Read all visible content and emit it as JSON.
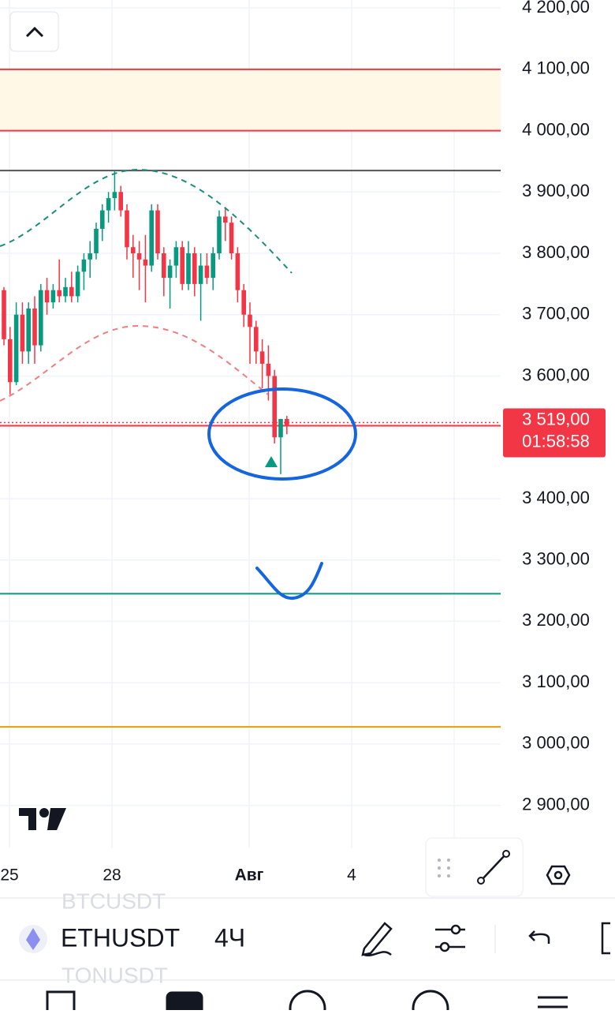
{
  "chart_data": {
    "type": "candlestick",
    "ylim": [
      2830,
      4213
    ],
    "yticks": [
      {
        "value": 4200,
        "label": "4 200,00"
      },
      {
        "value": 4100,
        "label": "4 100,00"
      },
      {
        "value": 4000,
        "label": "4 000,00"
      },
      {
        "value": 3900,
        "label": "3 900,00"
      },
      {
        "value": 3800,
        "label": "3 800,00"
      },
      {
        "value": 3700,
        "label": "3 700,00"
      },
      {
        "value": 3600,
        "label": "3 600,00"
      },
      {
        "value": 3400,
        "label": "3 400,00"
      },
      {
        "value": 3300,
        "label": "3 300,00"
      },
      {
        "value": 3200,
        "label": "3 200,00"
      },
      {
        "value": 3100,
        "label": "3 100,00"
      },
      {
        "value": 3000,
        "label": "3 000,00"
      },
      {
        "value": 2900,
        "label": "2 900,00"
      }
    ],
    "x_labels": [
      "25",
      "28",
      "Авг",
      "4"
    ],
    "up_color": "#089981",
    "down_color": "#f23645",
    "candles": [
      [
        3740,
        3745,
        3650,
        3660
      ],
      [
        3660,
        3680,
        3570,
        3590
      ],
      [
        3590,
        3720,
        3585,
        3700
      ],
      [
        3700,
        3720,
        3620,
        3640
      ],
      [
        3640,
        3720,
        3620,
        3710
      ],
      [
        3710,
        3730,
        3620,
        3650
      ],
      [
        3650,
        3750,
        3640,
        3740
      ],
      [
        3740,
        3760,
        3700,
        3720
      ],
      [
        3720,
        3750,
        3710,
        3740
      ],
      [
        3740,
        3790,
        3720,
        3730
      ],
      [
        3730,
        3760,
        3720,
        3745
      ],
      [
        3745,
        3770,
        3720,
        3730
      ],
      [
        3730,
        3780,
        3720,
        3770
      ],
      [
        3770,
        3800,
        3740,
        3790
      ],
      [
        3790,
        3820,
        3760,
        3800
      ],
      [
        3800,
        3850,
        3790,
        3840
      ],
      [
        3840,
        3880,
        3820,
        3870
      ],
      [
        3870,
        3900,
        3850,
        3890
      ],
      [
        3890,
        3935,
        3870,
        3900
      ],
      [
        3900,
        3910,
        3860,
        3870
      ],
      [
        3870,
        3880,
        3790,
        3810
      ],
      [
        3810,
        3830,
        3760,
        3800
      ],
      [
        3800,
        3820,
        3740,
        3790
      ],
      [
        3790,
        3830,
        3720,
        3780
      ],
      [
        3780,
        3880,
        3770,
        3870
      ],
      [
        3870,
        3880,
        3790,
        3800
      ],
      [
        3800,
        3810,
        3730,
        3760
      ],
      [
        3760,
        3790,
        3710,
        3780
      ],
      [
        3780,
        3820,
        3760,
        3810
      ],
      [
        3810,
        3820,
        3740,
        3750
      ],
      [
        3750,
        3820,
        3740,
        3800
      ],
      [
        3800,
        3810,
        3730,
        3750
      ],
      [
        3750,
        3800,
        3690,
        3780
      ],
      [
        3780,
        3800,
        3750,
        3760
      ],
      [
        3760,
        3810,
        3740,
        3800
      ],
      [
        3800,
        3870,
        3790,
        3860
      ],
      [
        3860,
        3875,
        3820,
        3850
      ],
      [
        3850,
        3860,
        3790,
        3800
      ],
      [
        3800,
        3810,
        3720,
        3740
      ],
      [
        3740,
        3750,
        3680,
        3700
      ],
      [
        3700,
        3720,
        3620,
        3680
      ],
      [
        3680,
        3690,
        3620,
        3640
      ],
      [
        3640,
        3660,
        3580,
        3620
      ],
      [
        3620,
        3650,
        3560,
        3600
      ],
      [
        3600,
        3610,
        3490,
        3500
      ],
      [
        3500,
        3530,
        3440,
        3530
      ],
      [
        3530,
        3535,
        3505,
        3519
      ]
    ],
    "zone": [
      4000,
      4100
    ],
    "levels": [
      {
        "value": 4100,
        "color": "#f23645"
      },
      {
        "value": 4000,
        "color": "#f23645"
      },
      {
        "value": 3935,
        "color": "#555555"
      },
      {
        "value": 3519,
        "color": "#f23645"
      },
      {
        "value": 3245,
        "color": "#089981"
      },
      {
        "value": 3028,
        "color": "#e5a000"
      }
    ],
    "price_label": "3 519,00",
    "countdown": "01:58:58"
  },
  "toolbar": {
    "prev_symbol": "BTCUSDT",
    "symbol": "ETHUSDT",
    "interval": "4Ч",
    "next_symbol": "TONUSDT"
  }
}
